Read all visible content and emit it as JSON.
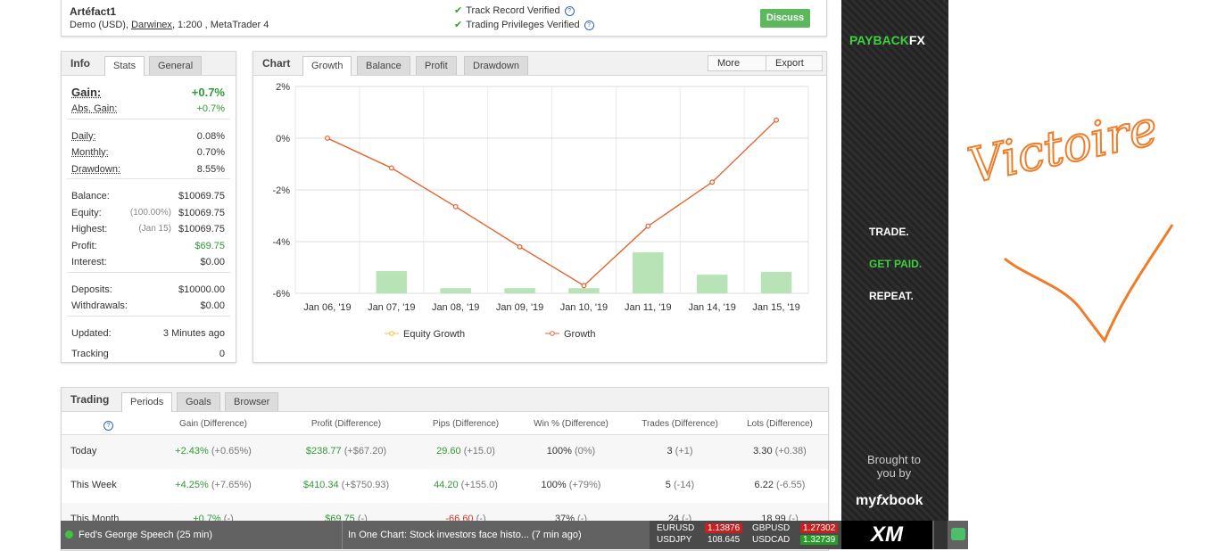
{
  "header": {
    "title": "Artéfact1",
    "subtitle": [
      "Demo (USD),",
      "Darwinex",
      ", 1:200 , MetaTrader 4"
    ],
    "verified": [
      {
        "text": "Track Record Verified",
        "help": "?"
      },
      {
        "text": "Trading Privileges Verified",
        "help": "?"
      }
    ],
    "button": "Discuss"
  },
  "info": {
    "tabs": [
      "Info",
      "Stats",
      "General"
    ],
    "groups": [
      [
        {
          "label": "Gain:",
          "value": "+0.7%",
          "color": "#2e9b33"
        },
        {
          "label": "Abs. Gain:",
          "value": "+0.7%",
          "color": "#2e9b33"
        }
      ],
      [
        {
          "label": "Daily:",
          "value": "0.08%"
        },
        {
          "label": "Monthly:",
          "value": "0.70%"
        },
        {
          "label": "Drawdown:",
          "value": "8.55%"
        }
      ],
      [
        {
          "label": "Balance:",
          "value": "$10069.75"
        },
        {
          "label": "Equity:",
          "note": "(100.00%)",
          "value": "$10069.75"
        },
        {
          "label": "Highest:",
          "note": "(Jan 15)",
          "value": "$10069.75"
        },
        {
          "label": "Profit:",
          "value": "$69.75",
          "color": "#2e9b33"
        },
        {
          "label": "Interest:",
          "value": "$0.00"
        }
      ],
      [
        {
          "label": "Deposits:",
          "value": "$10000.00"
        },
        {
          "label": "Withdrawals:",
          "value": "$0.00"
        }
      ],
      [
        {
          "label": "Updated:",
          "value": "3 Minutes ago"
        },
        {
          "label": "Tracking",
          "value": "0"
        }
      ]
    ]
  },
  "chart_panel": {
    "tabs": [
      "Chart",
      "Growth",
      "Balance",
      "Profit",
      "Drawdown"
    ],
    "buttons": [
      "More",
      "Export"
    ]
  },
  "chart_data": {
    "type": "line",
    "categories": [
      "Jan 06, '19",
      "Jan 07, '19",
      "Jan 08, '19",
      "Jan 09, '19",
      "Jan 10, '19",
      "Jan 11, '19",
      "Jan 14, '19",
      "Jan 15, '19"
    ],
    "series": [
      {
        "name": "Equity Growth",
        "color": "#f0c330",
        "values": [
          0,
          -1.15,
          -2.65,
          -4.2,
          -5.7,
          -3.4,
          -1.7,
          0.7
        ]
      },
      {
        "name": "Growth",
        "color": "#e2623a",
        "values": [
          0,
          -1.15,
          -2.65,
          -4.2,
          -5.7,
          -3.4,
          -1.7,
          0.7
        ]
      }
    ],
    "bars": {
      "color": "#b7e3b7",
      "values": [
        null,
        -5.14,
        -5.8,
        -5.8,
        -5.8,
        -4.41,
        -5.28,
        -5.17
      ]
    },
    "ylim": [
      -6,
      2
    ],
    "yticks": [
      {
        "value": -6,
        "label": "-6%"
      },
      {
        "value": -4,
        "label": "-4%"
      },
      {
        "value": -2,
        "label": "-2%"
      },
      {
        "value": 0,
        "label": "0%"
      },
      {
        "value": 2,
        "label": "2%"
      }
    ],
    "grid": true
  },
  "trading": {
    "tabs": [
      "Trading",
      "Periods",
      "Goals",
      "Browser"
    ],
    "help": "?",
    "columns": [
      "Gain (Difference)",
      "Profit (Difference)",
      "Pips (Difference)",
      "Win % (Difference)",
      "Trades (Difference)",
      "Lots (Difference)"
    ],
    "rows": [
      {
        "label": "Today",
        "cells": [
          {
            "value": "+2.43%",
            "diff": "(+0.65%)",
            "color": "#2e9b33"
          },
          {
            "value": "$238.77",
            "diff": "(+$67.20)",
            "color": "#2e9b33"
          },
          {
            "value": "29.60",
            "diff": "(+15.0)",
            "color": "#2e9b33"
          },
          {
            "value": "100%",
            "diff": "(0%)"
          },
          {
            "value": "3",
            "diff": "(+1)"
          },
          {
            "value": "3.30",
            "diff": "(+0.38)"
          }
        ]
      },
      {
        "label": "This Week",
        "cells": [
          {
            "value": "+4.25%",
            "diff": "(+7.65%)",
            "color": "#2e9b33"
          },
          {
            "value": "$410.34",
            "diff": "(+$750.93)",
            "color": "#2e9b33"
          },
          {
            "value": "44.20",
            "diff": "(+155.0)",
            "color": "#2e9b33"
          },
          {
            "value": "100%",
            "diff": "(+79%)"
          },
          {
            "value": "5",
            "diff": "(-14)"
          },
          {
            "value": "6.22",
            "diff": "(-6.55)"
          }
        ]
      },
      {
        "label": "This Month",
        "cells": [
          {
            "value": "+0.7%",
            "diff": "(-)",
            "color": "#2e9b33"
          },
          {
            "value": "$69.75",
            "diff": "(-)",
            "color": "#2e9b33"
          },
          {
            "value": "-66.60",
            "diff": "(-)",
            "color": "#d23a2a"
          },
          {
            "value": "37%",
            "diff": "(-)"
          },
          {
            "value": "24",
            "diff": "(-)"
          },
          {
            "value": "18.99",
            "diff": "(-)"
          }
        ]
      }
    ]
  },
  "ad": {
    "brand": [
      "PAYBACK",
      "FX"
    ],
    "lines": [
      {
        "text": "TRADE.",
        "color": "#ffffff"
      },
      {
        "text": "GET PAID.",
        "color": "#3fcf3f"
      },
      {
        "text": "REPEAT.",
        "color": "#ffffff"
      }
    ],
    "credit": "Brought to you by",
    "logo": [
      "my",
      "fx",
      "book"
    ]
  },
  "ticker": {
    "news": [
      "Fed's George Speech (25 min)",
      "In One Chart: Stock investors face histo... (7 min ago)"
    ],
    "quotes": [
      {
        "symbol": "EURUSD",
        "value": "1.13876",
        "color": "#c8201f"
      },
      {
        "symbol": "GBPUSD",
        "value": "1.27302",
        "color": "#c8201f"
      },
      {
        "symbol": "USDJPY",
        "value": "108.645"
      },
      {
        "symbol": "USDCAD",
        "value": "1.32739",
        "color": "#2a9b2a"
      }
    ],
    "logo": "XM"
  },
  "annotation": "Victoire"
}
